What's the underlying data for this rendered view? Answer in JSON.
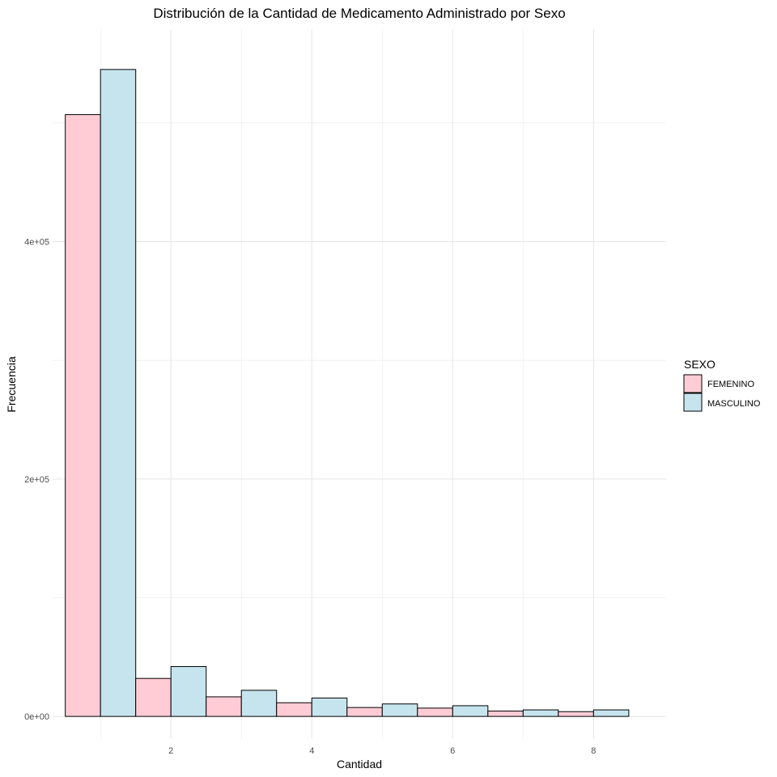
{
  "chart_data": {
    "type": "bar",
    "title": "Distribución de la Cantidad de Medicamento Administrado por Sexo",
    "xlabel": "Cantidad",
    "ylabel": "Frecuencia",
    "x_ticks": [
      "2",
      "4",
      "6",
      "8"
    ],
    "y_ticks": [
      "0e+00",
      "2e+05",
      "4e+05"
    ],
    "xlim": [
      0.32,
      9.03
    ],
    "ylim": [
      -19000,
      579000
    ],
    "grid": true,
    "legend": {
      "title": "SEXO",
      "position": "right"
    },
    "categories": [
      1,
      2,
      3,
      4,
      5,
      6,
      7,
      8
    ],
    "bar_width": 1.0,
    "series": [
      {
        "name": "FEMENINO",
        "color": "#ffccd5",
        "values": [
          507000,
          32000,
          16500,
          11500,
          7500,
          7000,
          4500,
          4000
        ]
      },
      {
        "name": "MASCULINO",
        "color": "#c6e4ee",
        "values": [
          545000,
          42000,
          22000,
          15500,
          10500,
          9000,
          5500,
          5500
        ]
      }
    ]
  }
}
